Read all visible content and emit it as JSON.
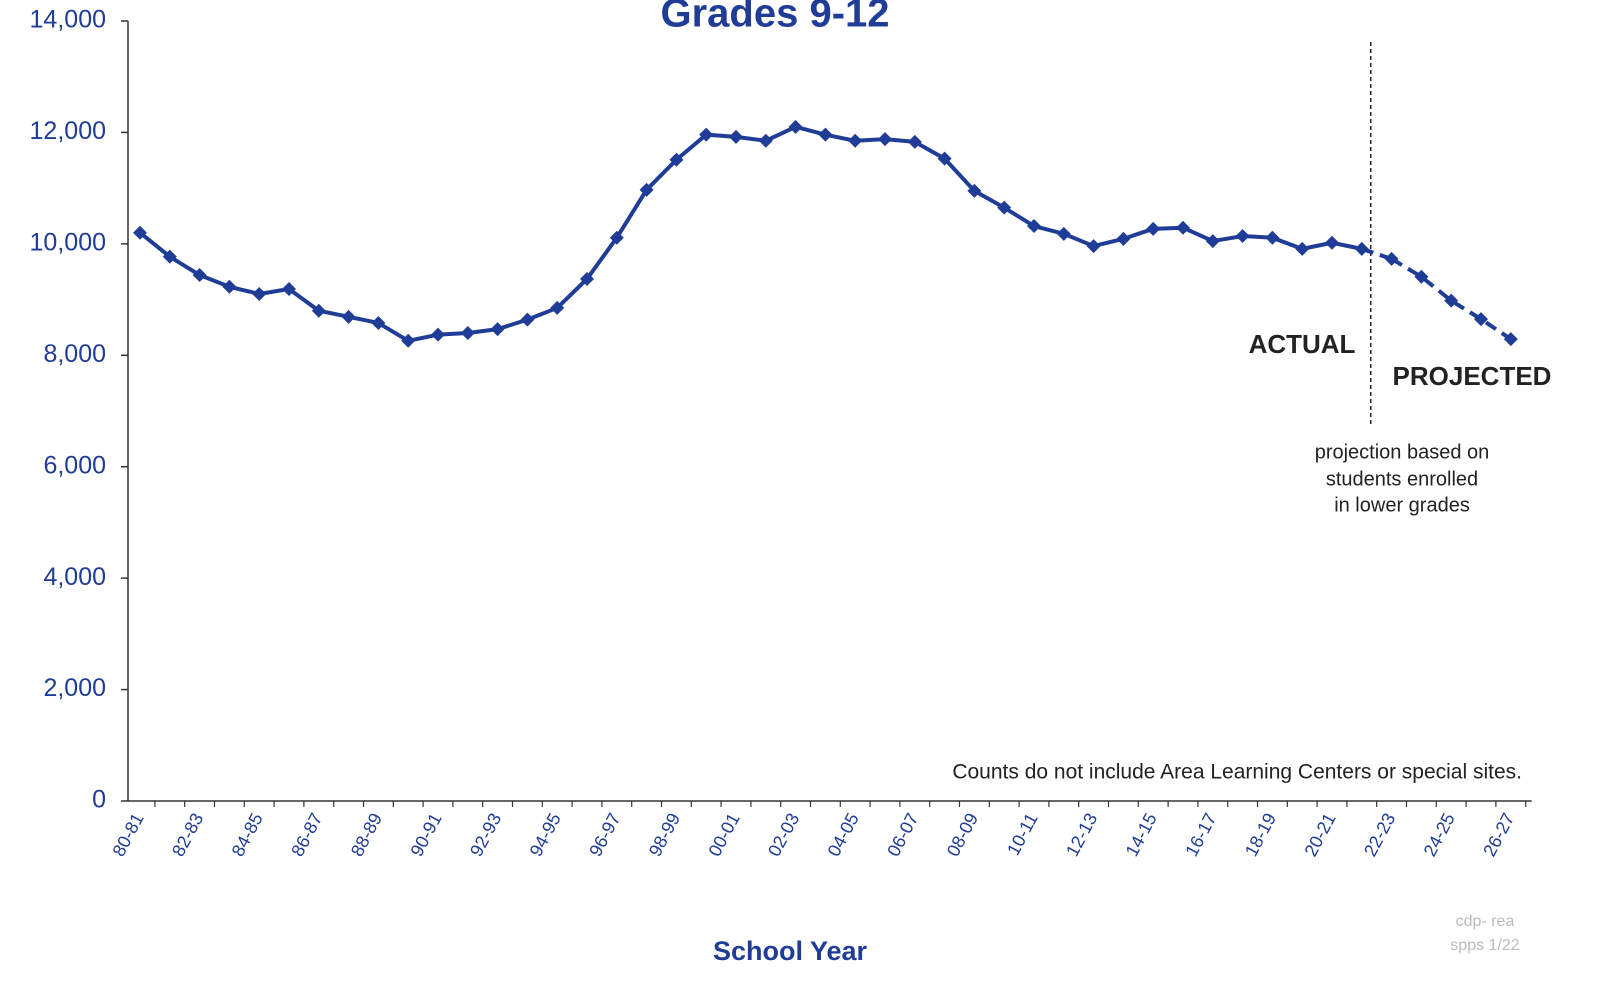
{
  "chart_data": {
    "type": "line",
    "title": "Grades 9-12",
    "x_label": "School Year",
    "categories": [
      "80-81",
      null,
      "82-83",
      null,
      "84-85",
      null,
      "86-87",
      null,
      "88-89",
      null,
      "90-91",
      null,
      "92-93",
      null,
      "94-95",
      null,
      "96-97",
      null,
      "98-99",
      null,
      "00-01",
      null,
      "02-03",
      null,
      "04-05",
      null,
      "06-07",
      null,
      "08-09",
      null,
      "10-11",
      null,
      "12-13",
      null,
      "14-15",
      null,
      "16-17",
      null,
      "18-19",
      null,
      "20-21",
      null,
      "22-23",
      null,
      "24-25",
      null,
      "26-27"
    ],
    "series": [
      {
        "name": "ACTUAL",
        "color": "#1f3c96",
        "dashed": false,
        "values": [
          10200,
          9770,
          9440,
          9230,
          9100,
          9190,
          8800,
          8690,
          8580,
          8260,
          8370,
          8400,
          8470,
          8640,
          8850,
          9370,
          10110,
          10970,
          11510,
          11960,
          11920,
          11850,
          12100,
          11960,
          11850,
          11880,
          11830,
          11530,
          10950,
          10650,
          10320,
          10180,
          9960,
          10090,
          10270,
          10290,
          10050,
          10140,
          10110,
          9910,
          10020,
          9910,
          null,
          null,
          null,
          null,
          null
        ]
      },
      {
        "name": "PROJECTED",
        "color": "#1f3c96",
        "dashed": true,
        "values": [
          null,
          null,
          null,
          null,
          null,
          null,
          null,
          null,
          null,
          null,
          null,
          null,
          null,
          null,
          null,
          null,
          null,
          null,
          null,
          null,
          null,
          null,
          null,
          null,
          null,
          null,
          null,
          null,
          null,
          null,
          null,
          null,
          null,
          null,
          null,
          null,
          null,
          null,
          null,
          null,
          null,
          null,
          9730,
          9410,
          8980,
          8650,
          8290
        ]
      }
    ],
    "ylim": [
      0,
      14000
    ],
    "yticks": [
      0,
      {
        "value": 2000,
        "label": "2,000"
      },
      {
        "value": 4000,
        "label": "4,000"
      },
      {
        "value": 6000,
        "label": "6,000"
      },
      {
        "value": 8000,
        "label": "8,000"
      },
      {
        "value": 10000,
        "label": "10,000"
      },
      {
        "value": 12000,
        "label": "12,000"
      },
      {
        "value": 14000,
        "label": "14,000"
      }
    ],
    "annotations": {
      "projection_note": [
        "projection based on",
        "students enrolled",
        "in lower grades"
      ],
      "footnote": "Counts do not include Area Learning Centers or special sites.",
      "source": [
        "cdp- rea",
        "spps 1/22"
      ]
    }
  }
}
